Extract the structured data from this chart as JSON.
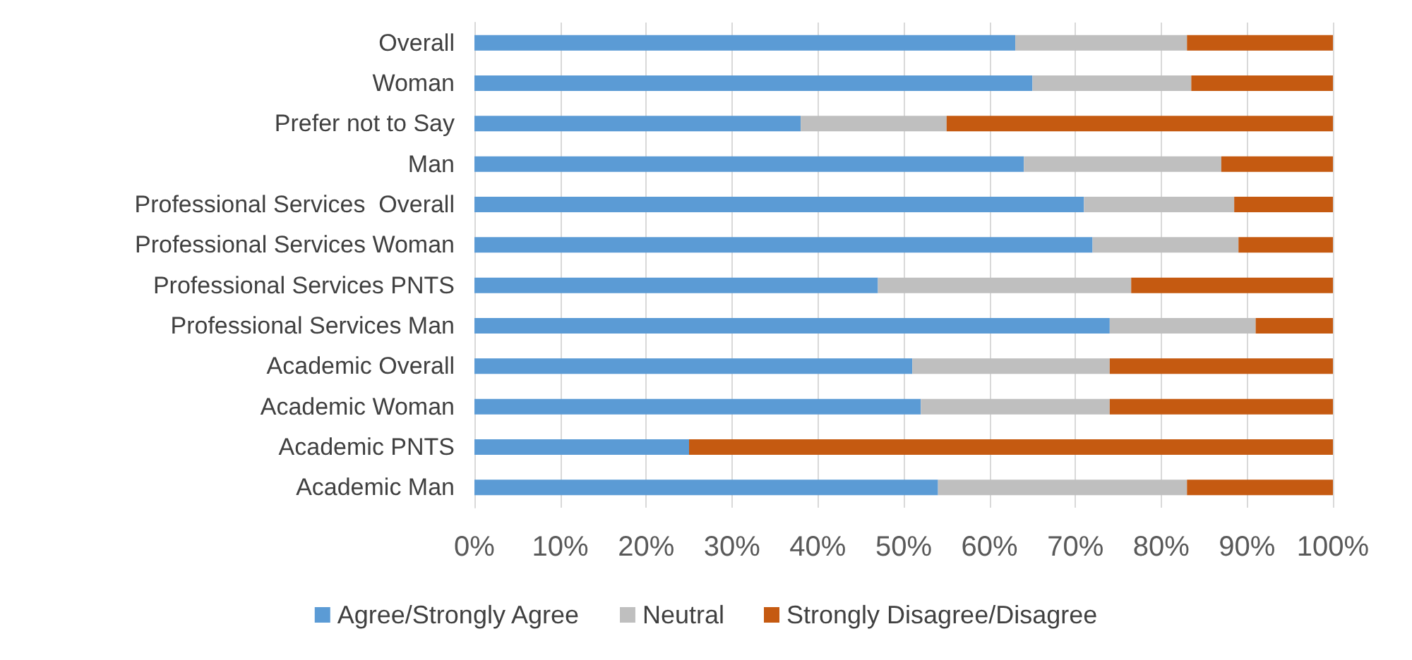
{
  "chart_data": {
    "type": "bar",
    "orientation": "horizontal",
    "stacked": true,
    "categories": [
      "Overall",
      "Woman",
      "Prefer not to Say",
      "Man",
      "Professional Services  Overall",
      "Professional Services Woman",
      "Professional Services PNTS",
      "Professional Services Man",
      "Academic Overall",
      "Academic Woman",
      "Academic PNTS",
      "Academic Man"
    ],
    "series": [
      {
        "name": "Agree/Strongly Agree",
        "color": "#5b9bd5",
        "values": [
          63,
          65,
          38,
          64,
          71,
          72,
          47,
          74,
          51,
          52,
          25,
          54
        ]
      },
      {
        "name": "Neutral",
        "color": "#bfbfbf",
        "values": [
          20,
          18.5,
          17,
          23,
          17.5,
          17,
          29.5,
          17,
          23,
          22,
          0,
          29
        ]
      },
      {
        "name": "Strongly Disagree/Disagree",
        "color": "#c55a11",
        "values": [
          17,
          16.5,
          45,
          13,
          11.5,
          11,
          23.5,
          9,
          26,
          26,
          75,
          17
        ]
      }
    ],
    "xlim": [
      0,
      100
    ],
    "xticks": [
      {
        "value": 0,
        "label": "0%"
      },
      {
        "value": 10,
        "label": "10%"
      },
      {
        "value": 20,
        "label": "20%"
      },
      {
        "value": 30,
        "label": "30%"
      },
      {
        "value": 40,
        "label": "40%"
      },
      {
        "value": 50,
        "label": "50%"
      },
      {
        "value": 60,
        "label": "60%"
      },
      {
        "value": 70,
        "label": "70%"
      },
      {
        "value": 80,
        "label": "80%"
      },
      {
        "value": 90,
        "label": "90%"
      },
      {
        "value": 100,
        "label": "100%"
      }
    ],
    "grid": "x",
    "legend": "bottom"
  }
}
